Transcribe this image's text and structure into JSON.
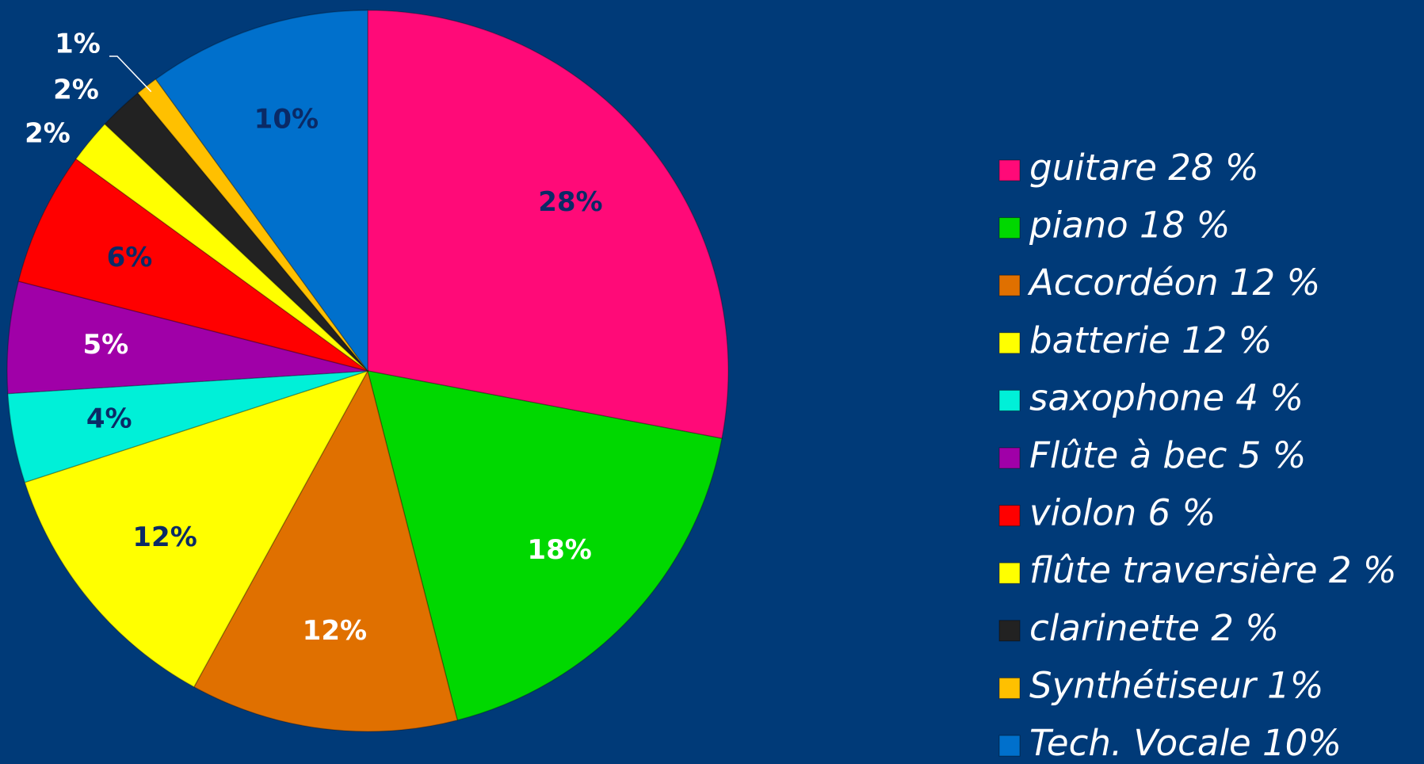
{
  "chart_data": {
    "type": "pie",
    "categories": [
      "guitare 28 %",
      "piano 18 %",
      "Accordéon 12 %",
      "batterie 12 %",
      "saxophone 4 %",
      "Flûte à bec 5 %",
      "violon 6 %",
      "flûte traversière 2 %",
      "clarinette 2 %",
      "Synthétiseur 1%",
      "Tech. Vocale 10%"
    ],
    "values": [
      28,
      18,
      12,
      12,
      4,
      5,
      6,
      2,
      2,
      1,
      10
    ],
    "value_labels": [
      "28%",
      "18%",
      "12%",
      "12%",
      "4%",
      "5%",
      "6%",
      "2%",
      "2%",
      "1%",
      "10%"
    ],
    "colors": [
      "#ff0a78",
      "#00d800",
      "#e07000",
      "#ffff00",
      "#00f0d8",
      "#a000a8",
      "#ff0000",
      "#ffff00",
      "#222222",
      "#ffc000",
      "#0070cc"
    ],
    "label_colors": [
      "#0a2a66",
      "#ffffff",
      "#ffffff",
      "#0a2a66",
      "#0a2a66",
      "#ffffff",
      "#0a2a66",
      "#ffffff",
      "#ffffff",
      "#ffffff",
      "#0a2a66"
    ],
    "legend": "right"
  }
}
